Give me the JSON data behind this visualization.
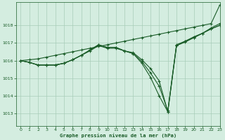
{
  "bg_color": "#d4ede0",
  "grid_color": "#a8ccb8",
  "line_color": "#1a5c28",
  "title": "Graphe pression niveau de la mer (hPa)",
  "xlim": [
    -0.5,
    23
  ],
  "ylim": [
    1012.3,
    1019.3
  ],
  "yticks": [
    1013,
    1014,
    1015,
    1016,
    1017,
    1018
  ],
  "xticks": [
    0,
    1,
    2,
    3,
    4,
    5,
    6,
    7,
    8,
    9,
    10,
    11,
    12,
    13,
    14,
    15,
    16,
    17,
    18,
    19,
    20,
    21,
    22,
    23
  ],
  "series": [
    {
      "x": [
        0,
        1,
        2,
        3,
        4,
        5,
        6,
        7,
        8,
        9,
        10,
        11,
        12,
        13,
        14,
        15,
        16,
        17,
        18,
        19,
        20,
        21,
        22,
        23
      ],
      "y": [
        1016.0,
        1016.05,
        1016.1,
        1016.2,
        1016.3,
        1016.4,
        1016.5,
        1016.6,
        1016.7,
        1016.8,
        1016.9,
        1017.0,
        1017.1,
        1017.2,
        1017.3,
        1017.4,
        1017.5,
        1017.6,
        1017.7,
        1017.8,
        1017.9,
        1018.0,
        1018.1,
        1019.15
      ]
    },
    {
      "x": [
        0,
        1,
        2,
        3,
        4,
        5,
        6,
        7,
        8,
        9,
        10,
        11,
        12,
        13,
        14,
        15,
        16,
        17,
        18,
        19,
        20,
        21,
        22,
        23
      ],
      "y": [
        1016.0,
        1015.9,
        1015.75,
        1015.75,
        1015.75,
        1015.85,
        1016.05,
        1016.3,
        1016.55,
        1016.85,
        1016.7,
        1016.7,
        1016.55,
        1016.45,
        1016.05,
        1015.55,
        1014.85,
        1013.1,
        1016.85,
        1017.1,
        1017.35,
        1017.55,
        1017.85,
        1018.1
      ]
    },
    {
      "x": [
        0,
        1,
        2,
        3,
        4,
        5,
        6,
        7,
        8,
        9,
        10,
        11,
        12,
        13,
        14,
        15,
        16,
        17,
        18,
        19,
        20,
        21,
        22,
        23
      ],
      "y": [
        1016.0,
        1015.9,
        1015.75,
        1015.75,
        1015.75,
        1015.85,
        1016.05,
        1016.3,
        1016.6,
        1016.9,
        1016.75,
        1016.75,
        1016.55,
        1016.4,
        1015.95,
        1015.3,
        1014.55,
        1013.15,
        1016.9,
        1017.1,
        1017.3,
        1017.55,
        1017.8,
        1018.0
      ]
    },
    {
      "x": [
        0,
        1,
        2,
        3,
        4,
        5,
        6,
        7,
        8,
        9,
        10,
        11,
        12,
        13,
        14,
        15,
        16,
        17,
        18,
        19,
        20,
        21,
        22,
        23
      ],
      "y": [
        1016.0,
        1015.9,
        1015.75,
        1015.75,
        1015.75,
        1015.85,
        1016.05,
        1016.3,
        1016.6,
        1016.9,
        1016.75,
        1016.75,
        1016.55,
        1016.4,
        1015.85,
        1015.05,
        1014.0,
        1013.1,
        1016.85,
        1017.05,
        1017.3,
        1017.55,
        1017.8,
        1018.0
      ]
    }
  ]
}
